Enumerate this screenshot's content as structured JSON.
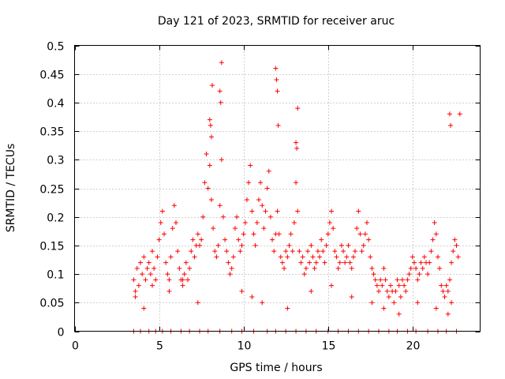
{
  "chart_data": {
    "type": "scatter",
    "title": "Day 121 of 2023, SRMTID for receiver aruc",
    "xlabel": "GPS time / hours",
    "ylabel": "SRMTID / TECUs",
    "xlim": [
      0,
      24
    ],
    "ylim": [
      0,
      0.5
    ],
    "x_ticks": [
      0,
      5,
      10,
      15,
      20
    ],
    "x_tick_labels": [
      "0",
      "5",
      "10",
      "15",
      "20"
    ],
    "y_ticks": [
      0,
      0.05,
      0.1,
      0.15,
      0.2,
      0.25,
      0.3,
      0.35,
      0.4,
      0.45,
      0.5
    ],
    "y_tick_labels": [
      "0",
      "0.05",
      "0.1",
      "0.15",
      "0.2",
      "0.25",
      "0.3",
      "0.35",
      "0.4",
      "0.45",
      "0.5"
    ],
    "grid": true,
    "marker": "+",
    "series": [
      {
        "name": "SRMTID",
        "color": "#ff0000",
        "x": [
          3.5,
          3.6,
          3.7,
          3.8,
          3.9,
          4.0,
          4.1,
          4.2,
          4.3,
          4.4,
          4.5,
          4.6,
          4.7,
          4.8,
          4.9,
          5.0,
          5.1,
          5.2,
          5.3,
          5.4,
          5.5,
          5.6,
          5.7,
          5.8,
          5.9,
          6.0,
          6.1,
          6.2,
          6.3,
          6.4,
          6.5,
          6.6,
          6.7,
          6.8,
          6.9,
          7.0,
          7.1,
          7.2,
          7.3,
          7.4,
          7.5,
          7.6,
          7.7,
          7.8,
          7.9,
          8.0,
          8.1,
          8.2,
          8.3,
          8.4,
          8.5,
          8.6,
          8.7,
          8.8,
          8.9,
          9.0,
          9.1,
          9.2,
          9.3,
          9.4,
          9.5,
          9.6,
          9.7,
          9.8,
          9.9,
          10.0,
          10.1,
          10.2,
          10.3,
          10.4,
          10.5,
          10.6,
          10.7,
          10.8,
          10.9,
          11.0,
          11.1,
          11.2,
          11.3,
          11.4,
          11.5,
          11.6,
          11.7,
          11.8,
          11.9,
          12.0,
          12.1,
          12.2,
          12.3,
          12.4,
          12.5,
          12.6,
          12.7,
          12.8,
          12.9,
          13.0,
          13.1,
          13.2,
          13.3,
          13.4,
          13.5,
          13.6,
          13.7,
          13.8,
          13.9,
          14.0,
          14.1,
          14.2,
          14.3,
          14.4,
          14.5,
          14.6,
          14.7,
          14.8,
          14.9,
          15.0,
          15.1,
          15.2,
          15.3,
          15.4,
          15.5,
          15.6,
          15.7,
          15.8,
          15.9,
          16.0,
          16.1,
          16.2,
          16.3,
          16.4,
          16.5,
          16.6,
          16.7,
          16.8,
          16.9,
          17.0,
          17.1,
          17.2,
          17.3,
          17.4,
          17.5,
          17.6,
          17.7,
          17.8,
          17.9,
          18.0,
          18.1,
          18.2,
          18.3,
          18.4,
          18.5,
          18.6,
          18.7,
          18.8,
          18.9,
          19.0,
          19.1,
          19.2,
          19.3,
          19.4,
          19.5,
          19.6,
          19.7,
          19.8,
          19.9,
          20.0,
          20.1,
          20.2,
          20.3,
          20.4,
          20.5,
          20.6,
          20.7,
          20.8,
          20.9,
          21.0,
          21.1,
          21.2,
          21.3,
          21.4,
          21.5,
          21.6,
          21.7,
          21.8,
          21.9,
          22.0,
          22.1,
          22.2,
          22.3,
          22.4,
          22.5,
          22.6,
          22.7,
          22.8,
          8.0,
          8.05,
          8.1,
          8.15,
          8.6,
          8.65,
          8.7,
          11.9,
          11.95,
          12.0,
          12.05,
          13.1,
          13.15,
          13.2,
          22.2,
          22.25,
          22.3,
          3.6,
          4.1,
          4.6,
          5.6,
          6.4,
          7.3,
          9.9,
          10.5,
          11.1,
          12.6,
          14.0,
          15.2,
          16.4,
          17.6,
          18.3,
          19.2,
          20.3,
          21.4,
          22.1,
          3.5,
          3.9,
          4.4,
          4.8,
          5.2,
          5.7,
          6.3,
          6.8,
          7.4,
          7.9,
          8.6,
          9.3,
          9.9,
          10.6,
          11.4,
          11.9,
          12.5,
          13.1,
          13.7,
          14.3,
          15.0,
          15.6,
          16.2,
          16.8,
          17.4,
          18.0,
          18.6,
          19.1,
          19.7,
          20.2,
          20.9,
          21.5,
          22.0,
          22.6
        ],
        "y": [
          0.09,
          0.07,
          0.11,
          0.08,
          0.12,
          0.1,
          0.13,
          0.09,
          0.11,
          0.12,
          0.1,
          0.14,
          0.11,
          0.09,
          0.13,
          0.16,
          0.19,
          0.21,
          0.17,
          0.12,
          0.1,
          0.09,
          0.13,
          0.18,
          0.22,
          0.19,
          0.14,
          0.11,
          0.09,
          0.08,
          0.1,
          0.12,
          0.09,
          0.11,
          0.14,
          0.16,
          0.13,
          0.15,
          0.17,
          0.15,
          0.16,
          0.2,
          0.26,
          0.31,
          0.25,
          0.29,
          0.23,
          0.18,
          0.14,
          0.13,
          0.15,
          0.22,
          0.3,
          0.2,
          0.16,
          0.14,
          0.12,
          0.1,
          0.11,
          0.13,
          0.18,
          0.2,
          0.16,
          0.14,
          0.15,
          0.17,
          0.19,
          0.23,
          0.26,
          0.29,
          0.21,
          0.17,
          0.15,
          0.19,
          0.23,
          0.26,
          0.22,
          0.18,
          0.21,
          0.25,
          0.28,
          0.2,
          0.16,
          0.14,
          0.17,
          0.21,
          0.17,
          0.13,
          0.12,
          0.11,
          0.14,
          0.13,
          0.15,
          0.17,
          0.14,
          0.19,
          0.26,
          0.21,
          0.14,
          0.12,
          0.13,
          0.1,
          0.11,
          0.14,
          0.12,
          0.15,
          0.13,
          0.11,
          0.12,
          0.14,
          0.13,
          0.16,
          0.14,
          0.12,
          0.15,
          0.17,
          0.19,
          0.21,
          0.18,
          0.14,
          0.13,
          0.11,
          0.12,
          0.15,
          0.14,
          0.12,
          0.13,
          0.15,
          0.12,
          0.11,
          0.13,
          0.14,
          0.18,
          0.21,
          0.17,
          0.14,
          0.15,
          0.17,
          0.19,
          0.16,
          0.13,
          0.11,
          0.1,
          0.09,
          0.08,
          0.07,
          0.09,
          0.08,
          0.11,
          0.09,
          0.07,
          0.06,
          0.08,
          0.07,
          0.05,
          0.07,
          0.09,
          0.08,
          0.06,
          0.09,
          0.08,
          0.07,
          0.09,
          0.1,
          0.11,
          0.13,
          0.12,
          0.11,
          0.09,
          0.1,
          0.12,
          0.11,
          0.13,
          0.12,
          0.1,
          0.12,
          0.14,
          0.16,
          0.19,
          0.17,
          0.13,
          0.11,
          0.08,
          0.07,
          0.06,
          0.08,
          0.07,
          0.09,
          0.12,
          0.14,
          0.16,
          0.15,
          0.13,
          0.38,
          0.37,
          0.36,
          0.34,
          0.43,
          0.42,
          0.4,
          0.47,
          0.46,
          0.44,
          0.42,
          0.36,
          0.33,
          0.32,
          0.39,
          0.38,
          0.36,
          0.05,
          0.06,
          0.04,
          0.08,
          0.07,
          0.09,
          0.05,
          0.07,
          0.06,
          0.05,
          0.04,
          0.07,
          0.08,
          0.06,
          0.05,
          0.04,
          0.03,
          0.05,
          0.04,
          0.03,
          0,
          0,
          0,
          0,
          0,
          0,
          0,
          0,
          0,
          0,
          0,
          0,
          0,
          0,
          0,
          0,
          0,
          0,
          0,
          0,
          0,
          0,
          0,
          0,
          0,
          0,
          0,
          0,
          0,
          0,
          0,
          0,
          0,
          0
        ]
      }
    ]
  }
}
